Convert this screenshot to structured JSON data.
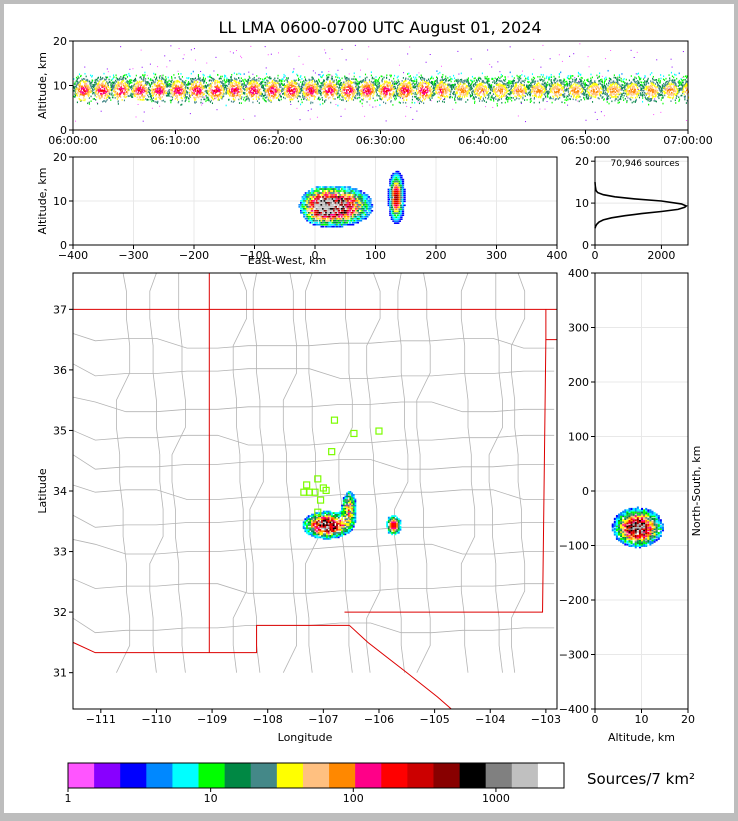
{
  "title": "LL LMA 0600-0700 UTC August 01, 2024",
  "colorbar_label": "Sources/7 km²",
  "source_count": "70,946 sources",
  "colors": {
    "frame": "#bdbdbd",
    "page": "#ffffff",
    "state_border": "#dd0000",
    "county_border": "#b4b4b4",
    "stations": "#7cfc00"
  },
  "colorbar": {
    "colors": [
      "#ff55ff",
      "#8800ff",
      "#0000ff",
      "#0088ff",
      "#00ffff",
      "#00ff00",
      "#008844",
      "#448888",
      "#ffff00",
      "#ffc080",
      "#ff8800",
      "#ff0088",
      "#ff0000",
      "#cc0000",
      "#880000",
      "#000000",
      "#808080",
      "#c0c0c0",
      "#ffffff"
    ],
    "tick_labels": [
      "1",
      "10",
      "100",
      "1000"
    ],
    "tick_values": [
      1,
      10,
      100,
      1000
    ],
    "min": 1,
    "max": 3000
  },
  "chart_data": [
    {
      "name": "time-altitude",
      "type": "scatter",
      "xlabel": "",
      "ylabel": "Altitude, km",
      "x_ticks": [
        "06:00:00",
        "06:10:00",
        "06:20:00",
        "06:30:00",
        "06:40:00",
        "06:50:00",
        "07:00:00"
      ],
      "x_tick_minutes": [
        0,
        10,
        20,
        30,
        40,
        50,
        60
      ],
      "xlim_minutes": [
        0,
        60
      ],
      "ylim": [
        0,
        20
      ],
      "y_ticks": [
        0,
        10,
        20
      ],
      "altitude_core_km": [
        6,
        13
      ]
    },
    {
      "name": "east-west-altitude",
      "type": "heatmap",
      "xlabel": "East-West, km",
      "ylabel": "Altitude, km",
      "xlim": [
        -400,
        400
      ],
      "ylim": [
        0,
        20
      ],
      "x_ticks": [
        -400,
        -300,
        -200,
        -100,
        0,
        100,
        200,
        300,
        400
      ],
      "y_ticks": [
        0,
        10,
        20
      ],
      "clusters": [
        {
          "x_range": [
            -30,
            100
          ],
          "alt_range": [
            3,
            17
          ],
          "peak_x": 40
        },
        {
          "x_range": [
            120,
            145
          ],
          "alt_range": [
            2,
            19
          ],
          "peak_x": 135
        }
      ]
    },
    {
      "name": "altitude-histogram",
      "type": "line",
      "xlabel": "",
      "ylabel": "",
      "xlim": [
        0,
        2800
      ],
      "ylim": [
        0,
        21
      ],
      "x_ticks": [
        0,
        2000
      ],
      "y_ticks": [
        0,
        10,
        20
      ],
      "x": [
        0,
        20,
        60,
        120,
        250,
        500,
        900,
        1400,
        2000,
        2500,
        2700,
        2750,
        2600,
        2000,
        1200,
        600,
        250,
        80,
        30,
        10,
        0
      ],
      "y": [
        4,
        4.5,
        5,
        5.5,
        6,
        6.5,
        7,
        7.5,
        8,
        8.5,
        9,
        9.3,
        9.8,
        10.5,
        11,
        11.5,
        12,
        12.5,
        13,
        14,
        15
      ]
    },
    {
      "name": "plan-view",
      "type": "heatmap",
      "xlabel": "Longitude",
      "ylabel": "Latitude",
      "xlim": [
        -111.5,
        -102.8
      ],
      "ylim": [
        30.4,
        37.6
      ],
      "x_ticks": [
        -111,
        -110,
        -109,
        -108,
        -107,
        -106,
        -105,
        -104,
        -103
      ],
      "y_ticks": [
        31,
        32,
        33,
        34,
        35,
        36,
        37
      ],
      "clusters": [
        {
          "lon_range": [
            -107.4,
            -106.4
          ],
          "lat_range": [
            32.9,
            34.0
          ]
        },
        {
          "lon_range": [
            -105.9,
            -105.6
          ],
          "lat_range": [
            33.2,
            33.7
          ]
        }
      ],
      "stations": [
        {
          "lon": -106.8,
          "lat": 35.17
        },
        {
          "lon": -106.45,
          "lat": 34.95
        },
        {
          "lon": -106.0,
          "lat": 34.99
        },
        {
          "lon": -106.85,
          "lat": 34.65
        },
        {
          "lon": -107.1,
          "lat": 34.2
        },
        {
          "lon": -107.3,
          "lat": 34.1
        },
        {
          "lon": -107.0,
          "lat": 34.05
        },
        {
          "lon": -107.35,
          "lat": 33.98
        },
        {
          "lon": -107.25,
          "lat": 33.98
        },
        {
          "lon": -107.15,
          "lat": 33.98
        },
        {
          "lon": -106.95,
          "lat": 34.01
        },
        {
          "lon": -107.05,
          "lat": 33.85
        },
        {
          "lon": -107.1,
          "lat": 33.65
        }
      ]
    },
    {
      "name": "altitude-north-south",
      "type": "heatmap",
      "xlabel": "Altitude, km",
      "ylabel": "North-South, km",
      "xlim": [
        0,
        20
      ],
      "ylim": [
        -400,
        400
      ],
      "x_ticks": [
        0,
        10,
        20
      ],
      "y_ticks": [
        -400,
        -300,
        -200,
        -100,
        0,
        100,
        200,
        300,
        400
      ],
      "cluster": {
        "alt_range": [
          0,
          19
        ],
        "ns_range": [
          -130,
          0
        ],
        "peak_alt": 9,
        "peak_ns": -65
      }
    }
  ]
}
